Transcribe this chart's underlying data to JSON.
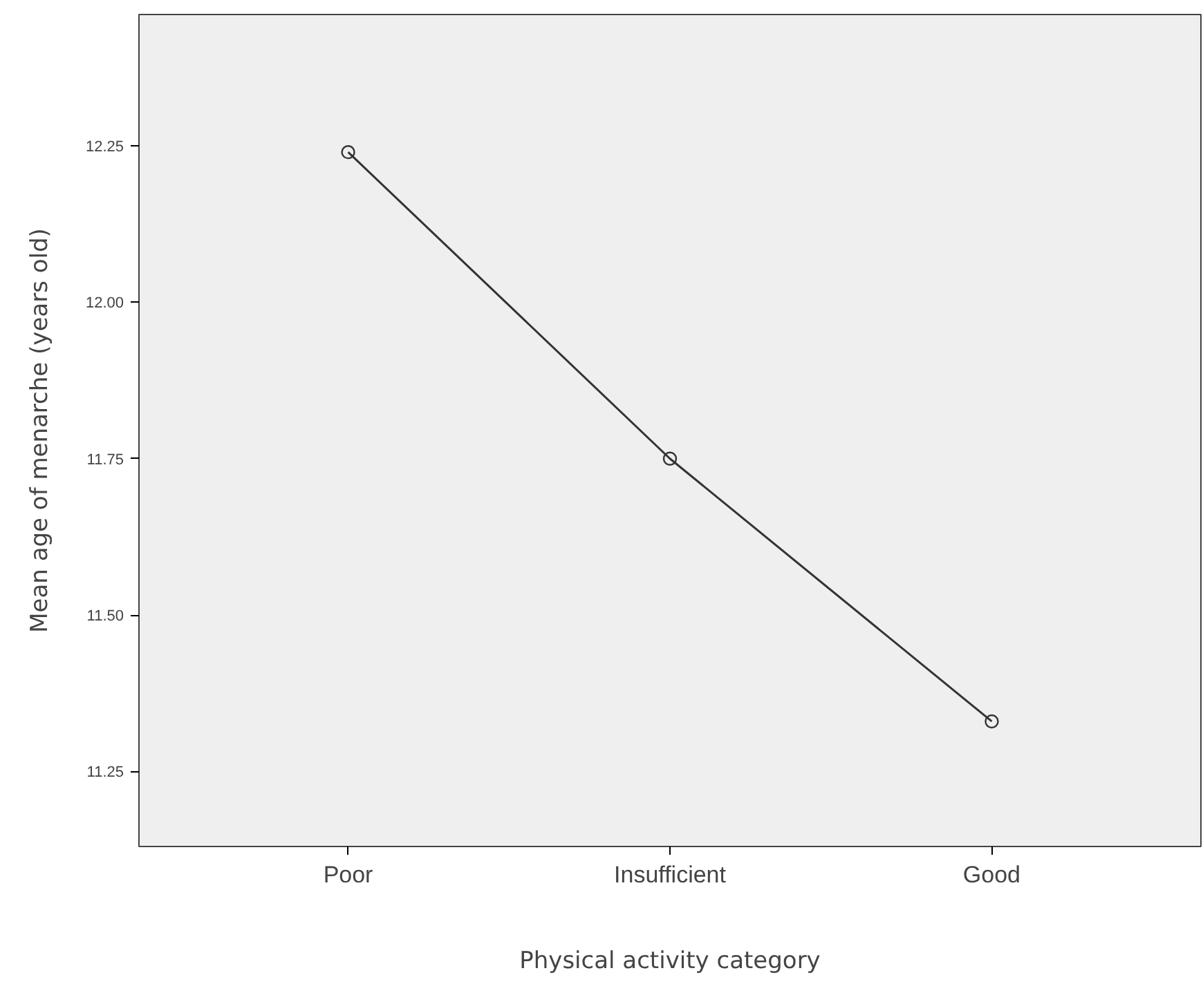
{
  "chart_data": {
    "type": "line",
    "xlabel": "Physical activity category",
    "ylabel": "Mean age of menarche (years old)",
    "categories": [
      "Poor",
      "Insufficient",
      "Good"
    ],
    "series": [
      {
        "color": "#333333",
        "values": [
          12.24,
          11.75,
          11.33
        ]
      }
    ],
    "marker": "circle",
    "ylim": [
      11.13,
      12.46
    ],
    "yticks": [
      {
        "value": 11.25,
        "label": "11.25"
      },
      {
        "value": 11.5,
        "label": "11.50"
      },
      {
        "value": 11.75,
        "label": "11.75"
      },
      {
        "value": 12.0,
        "label": "12.00"
      },
      {
        "value": 12.25,
        "label": "12.25"
      }
    ],
    "grid": false
  }
}
